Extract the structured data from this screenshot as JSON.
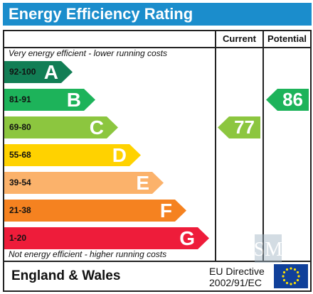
{
  "title": "Energy Efficiency Rating",
  "columns": {
    "current": "Current",
    "potential": "Potential"
  },
  "notes": {
    "top": "Very energy efficient - lower running costs",
    "bottom": "Not energy efficient - higher running costs"
  },
  "chart_data": {
    "type": "bar",
    "title": "Energy Efficiency Rating",
    "bands": [
      {
        "range": "92-100",
        "letter": "A",
        "color": "#127e55"
      },
      {
        "range": "81-91",
        "letter": "B",
        "color": "#1db35a"
      },
      {
        "range": "69-80",
        "letter": "C",
        "color": "#8cc63f"
      },
      {
        "range": "55-68",
        "letter": "D",
        "color": "#ffd200"
      },
      {
        "range": "39-54",
        "letter": "E",
        "color": "#fbb26b"
      },
      {
        "range": "21-38",
        "letter": "F",
        "color": "#f58220"
      },
      {
        "range": "1-20",
        "letter": "G",
        "color": "#ee1c3a"
      }
    ],
    "current": {
      "value": 77,
      "band": "C",
      "color": "#8cc63f"
    },
    "potential": {
      "value": 86,
      "band": "B",
      "color": "#1db35a"
    }
  },
  "footer": {
    "region": "England & Wales",
    "directive_line1": "EU Directive",
    "directive_line2": "2002/91/EC"
  },
  "watermark_text": "SM"
}
